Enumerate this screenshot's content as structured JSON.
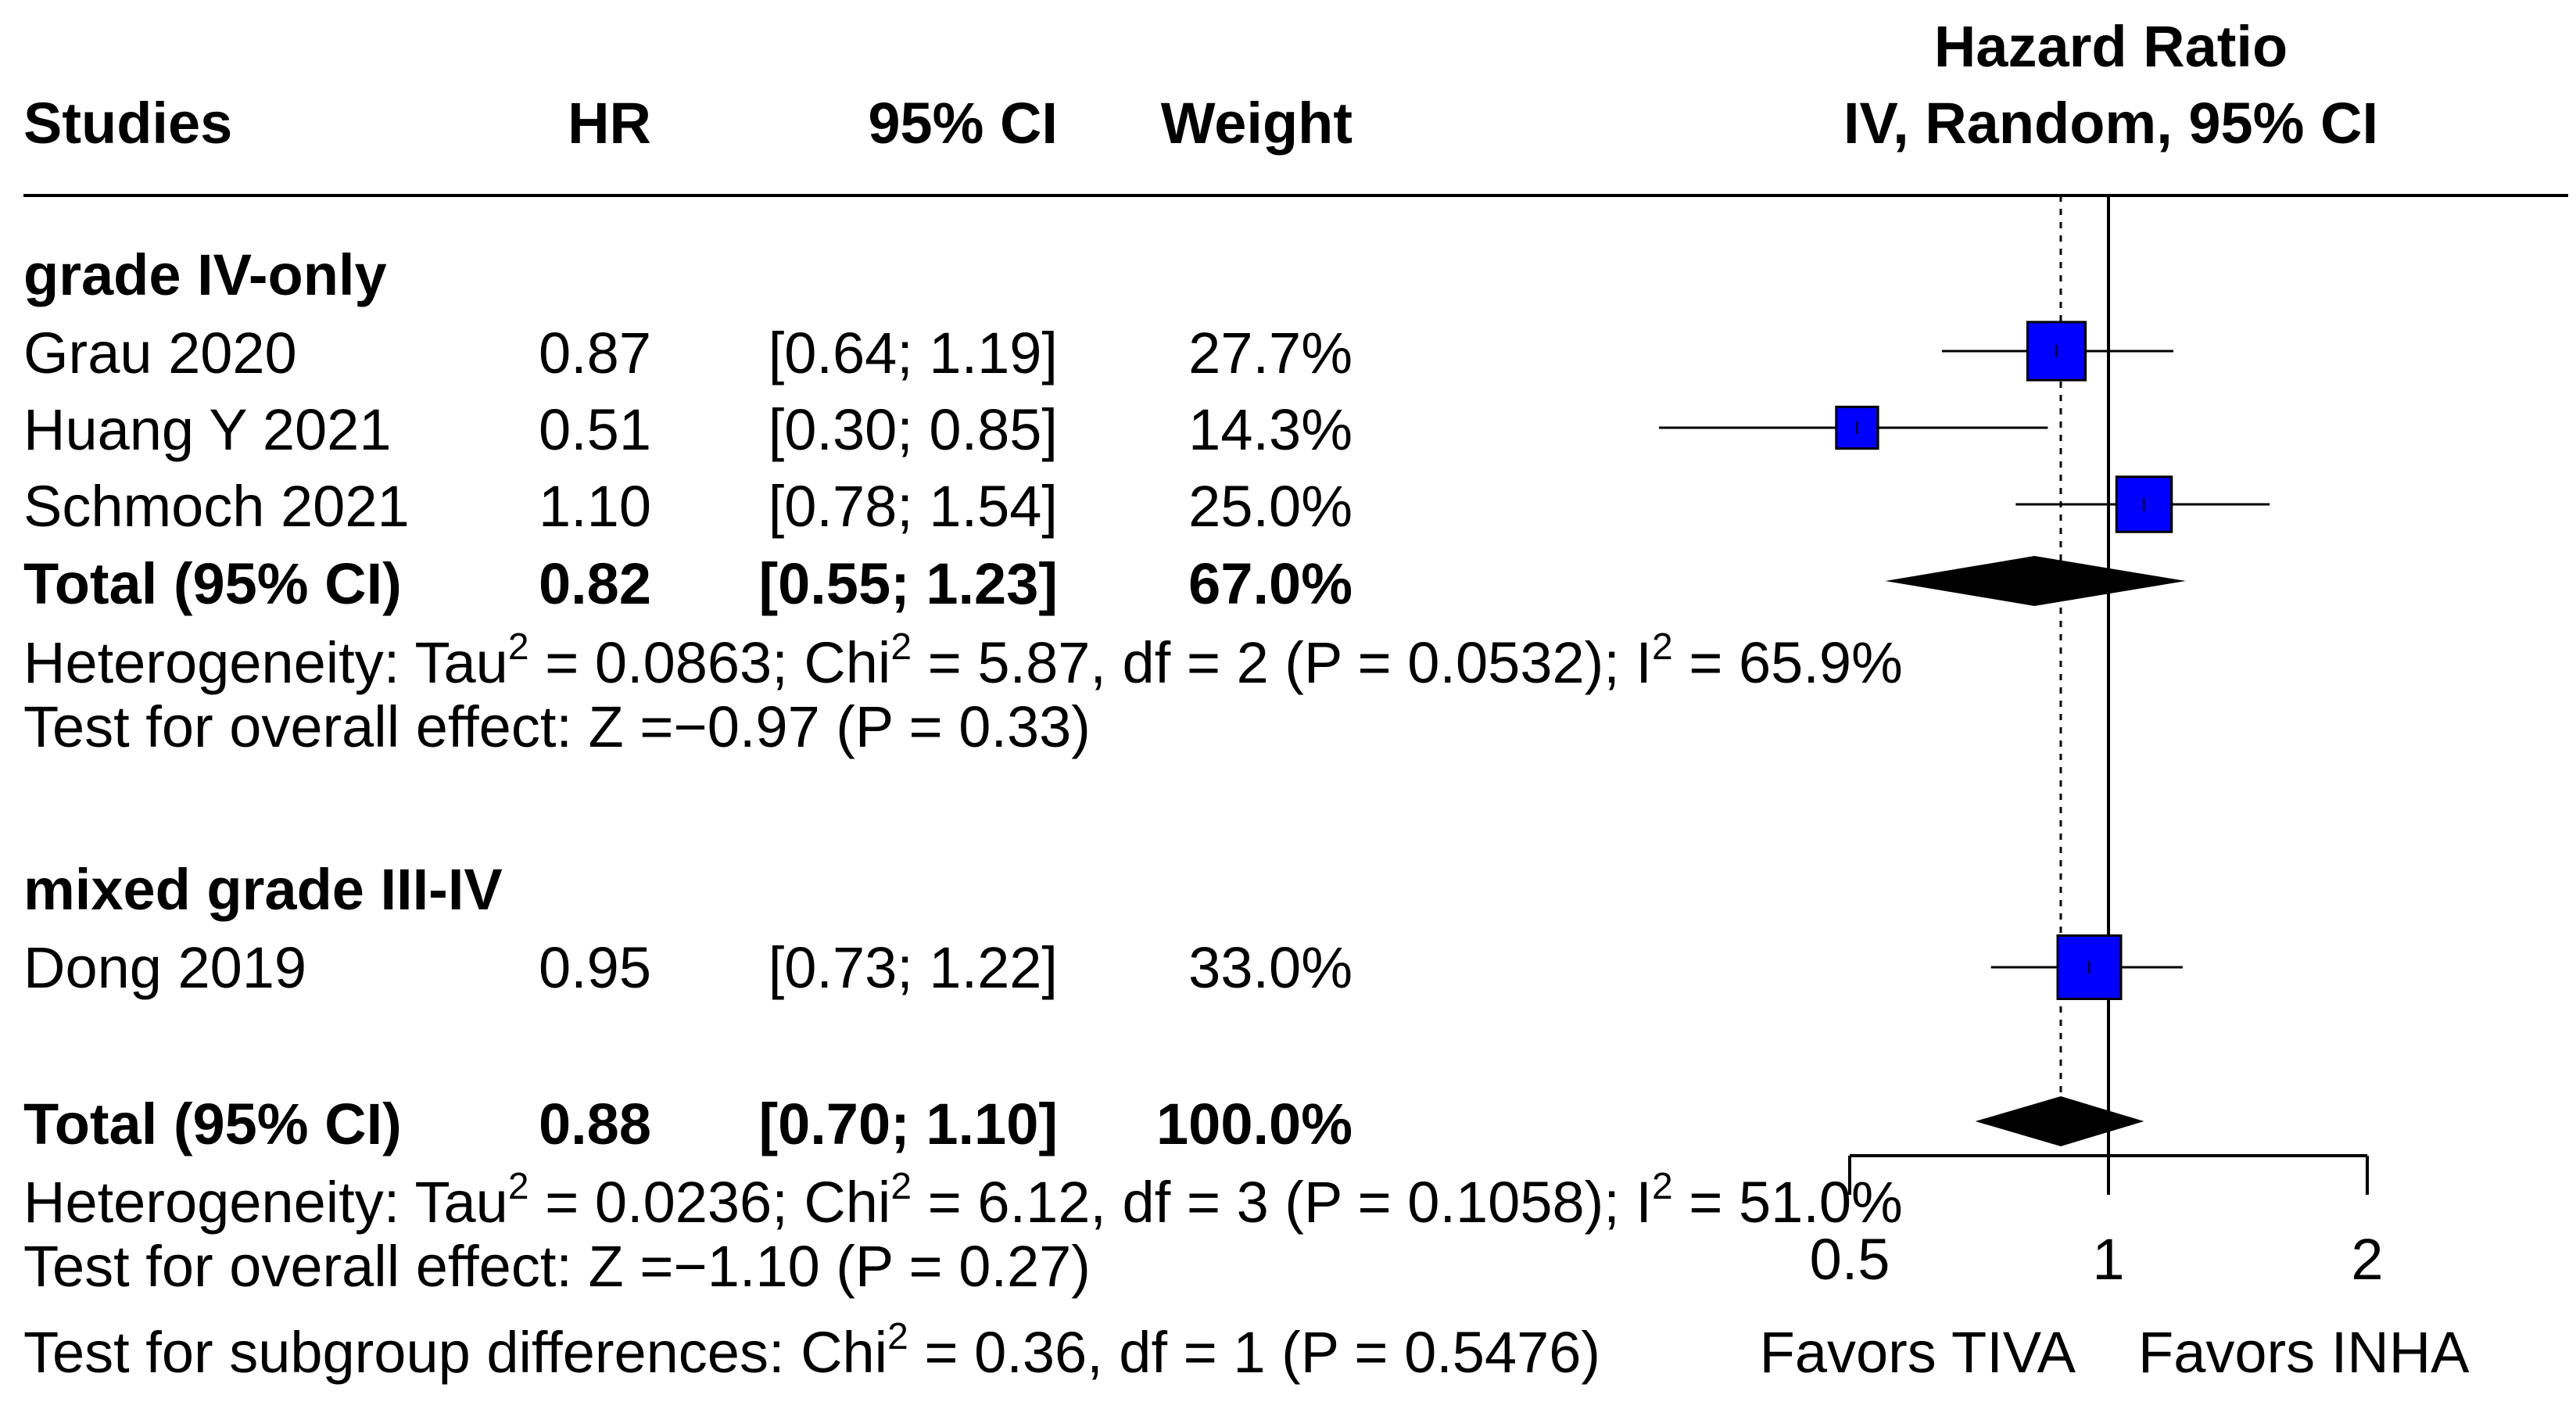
{
  "chart_data": {
    "type": "forest",
    "header": {
      "studies": "Studies",
      "hr": "HR",
      "ci": "95% CI",
      "weight": "Weight",
      "plot_title_line1": "Hazard Ratio",
      "plot_title_line2": "IV, Random, 95% CI"
    },
    "subgroups": [
      {
        "name": "grade IV-only",
        "studies": [
          {
            "name": "Grau 2020",
            "hr": 0.87,
            "lower": 0.64,
            "upper": 1.19,
            "hr_text": "0.87",
            "ci_text": "[0.64; 1.19]",
            "weight_text": "27.7%"
          },
          {
            "name": "Huang Y 2021",
            "hr": 0.51,
            "lower": 0.3,
            "upper": 0.85,
            "hr_text": "0.51",
            "ci_text": "[0.30; 0.85]",
            "weight_text": "14.3%"
          },
          {
            "name": "Schmoch 2021",
            "hr": 1.1,
            "lower": 0.78,
            "upper": 1.54,
            "hr_text": "1.10",
            "ci_text": "[0.78; 1.54]",
            "weight_text": "25.0%"
          }
        ],
        "total": {
          "label": "Total (95% CI)",
          "hr": 0.82,
          "lower": 0.55,
          "upper": 1.23,
          "hr_text": "0.82",
          "ci_text": "[0.55; 1.23]",
          "weight_text": "67.0%"
        },
        "heterogeneity": {
          "prefix": "Heterogeneity: Tau",
          "p1": " = 0.0863; Chi",
          "p2": " = 5.87, df = 2 (P = 0.0532); I",
          "p3": " = 65.9%"
        },
        "overall_effect": "Test for overall effect: Z =−0.97 (P = 0.33)"
      },
      {
        "name": "mixed grade III-IV",
        "studies": [
          {
            "name": "Dong 2019",
            "hr": 0.95,
            "lower": 0.73,
            "upper": 1.22,
            "hr_text": "0.95",
            "ci_text": "[0.73; 1.22]",
            "weight_text": "33.0%"
          }
        ]
      }
    ],
    "overall": {
      "label": "Total (95% CI)",
      "hr": 0.88,
      "lower": 0.7,
      "upper": 1.1,
      "hr_text": "0.88",
      "ci_text": "[0.70; 1.10]",
      "weight_text": "100.0%",
      "heterogeneity": {
        "prefix": "Heterogeneity: Tau",
        "p1": " = 0.0236; Chi",
        "p2": " = 6.12, df = 3 (P = 0.1058); I",
        "p3": " = 51.0%"
      },
      "overall_effect": "Test for overall effect: Z =−1.10 (P = 0.27)",
      "subgroup_test": {
        "prefix": "Test for subgroup differences: Chi",
        "p1": " = 0.36, df = 1 (P = 0.5476)"
      }
    },
    "sup2": "2",
    "x_axis": {
      "scale": "log",
      "range": [
        0.5,
        2
      ],
      "ticks": [
        0.5,
        1,
        2
      ],
      "tick_labels": [
        "0.5",
        "1",
        "2"
      ],
      "reference": 1
    },
    "favors_left": "Favors TIVA",
    "favors_right": "Favors INHA",
    "colors": {
      "box": "#0000ff",
      "diamond": "#000000",
      "line": "#000000"
    }
  }
}
